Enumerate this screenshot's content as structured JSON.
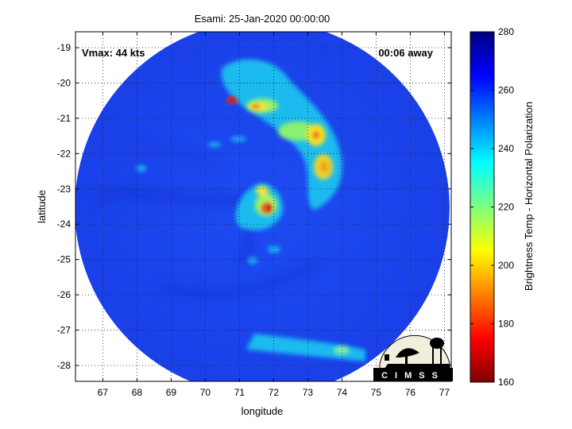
{
  "title": "Esami: 25-Jan-2020 00:00:00",
  "annotations": {
    "vmax": "Vmax: 44 kts",
    "time_away": "00:06 away"
  },
  "axes": {
    "xlabel": "longitude",
    "ylabel": "latitude",
    "xlim": [
      66.2,
      77.2
    ],
    "ylim": [
      -28.45,
      -18.55
    ],
    "xticks": [
      "67",
      "68",
      "69",
      "70",
      "71",
      "72",
      "73",
      "74",
      "75",
      "76",
      "77"
    ],
    "yticks": [
      "-19",
      "-20",
      "-21",
      "-22",
      "-23",
      "-24",
      "-25",
      "-26",
      "-27",
      "-28"
    ],
    "grid": "dotted"
  },
  "colorbar": {
    "label": "Brightness Temp - Horizontal Polarization",
    "range": [
      160,
      280
    ],
    "ticks": [
      "280",
      "260",
      "240",
      "220",
      "200",
      "180",
      "160"
    ]
  },
  "storm": {
    "center_lon": 71.9,
    "center_lat": -23.6
  },
  "logo": {
    "text": "CIMSS"
  },
  "colors": {
    "background_field": "#1c48f0",
    "outside": "#ffffff"
  }
}
